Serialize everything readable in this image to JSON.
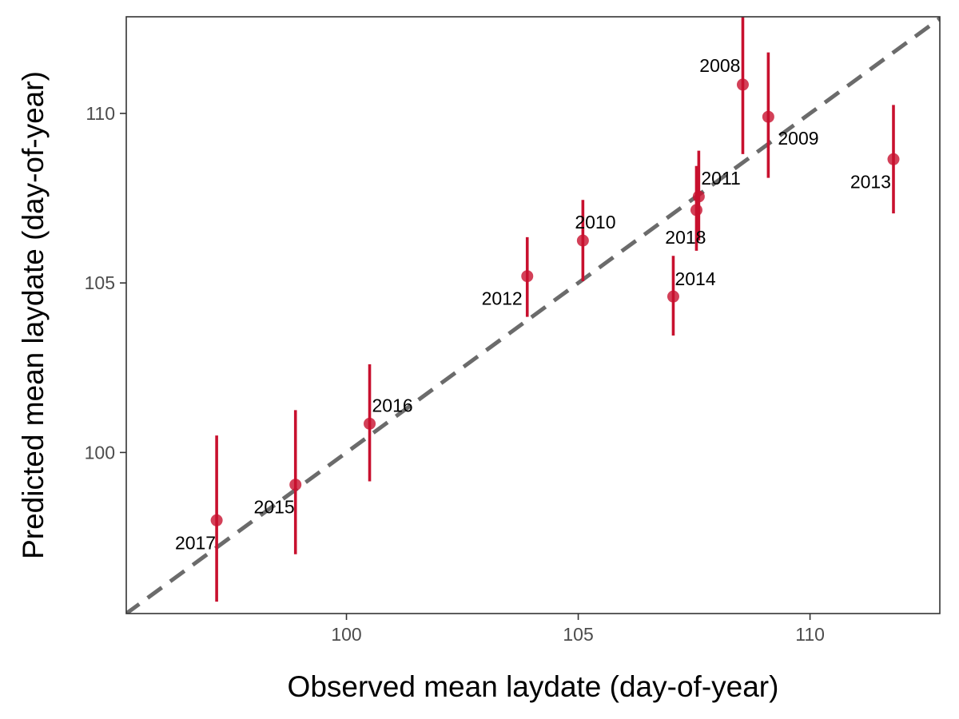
{
  "chart_data": {
    "type": "scatter",
    "title": "",
    "xlabel": "Observed mean laydate (day-of-year)",
    "ylabel": "Predicted mean laydate  (day-of-year)",
    "xlim": [
      95.25,
      112.8
    ],
    "ylim": [
      95.25,
      112.85
    ],
    "x_ticks": [
      100,
      105,
      110
    ],
    "y_ticks": [
      100,
      105,
      110
    ],
    "x_tick_labels": [
      "100",
      "105",
      "110"
    ],
    "y_tick_labels": [
      "100",
      "105",
      "110"
    ],
    "grid": false,
    "legend": "none",
    "reference_line": {
      "type": "identity",
      "style": "dashed",
      "color": "#6b6b6b"
    },
    "point_color": "#c8102e",
    "series": [
      {
        "points": [
          {
            "label": "2008",
            "x": 108.55,
            "y": 110.85,
            "y_low": 108.8,
            "y_high": 112.9
          },
          {
            "label": "2009",
            "x": 109.1,
            "y": 109.9,
            "y_low": 108.1,
            "y_high": 111.8
          },
          {
            "label": "2010",
            "x": 105.1,
            "y": 106.25,
            "y_low": 105.05,
            "y_high": 107.45
          },
          {
            "label": "2011",
            "x": 107.6,
            "y": 107.55,
            "y_low": 106.25,
            "y_high": 108.9
          },
          {
            "label": "2012",
            "x": 103.9,
            "y": 105.2,
            "y_low": 104.0,
            "y_high": 106.35
          },
          {
            "label": "2013",
            "x": 111.8,
            "y": 108.65,
            "y_low": 107.05,
            "y_high": 110.25
          },
          {
            "label": "2014",
            "x": 107.05,
            "y": 104.6,
            "y_low": 103.45,
            "y_high": 105.8
          },
          {
            "label": "2015",
            "x": 98.9,
            "y": 99.05,
            "y_low": 97.0,
            "y_high": 101.25
          },
          {
            "label": "2016",
            "x": 100.5,
            "y": 100.85,
            "y_low": 99.15,
            "y_high": 102.6
          },
          {
            "label": "2017",
            "x": 97.2,
            "y": 98.0,
            "y_low": 95.6,
            "y_high": 100.5
          },
          {
            "label": "2018",
            "x": 107.55,
            "y": 107.15,
            "y_low": 105.95,
            "y_high": 108.45
          }
        ]
      }
    ]
  }
}
